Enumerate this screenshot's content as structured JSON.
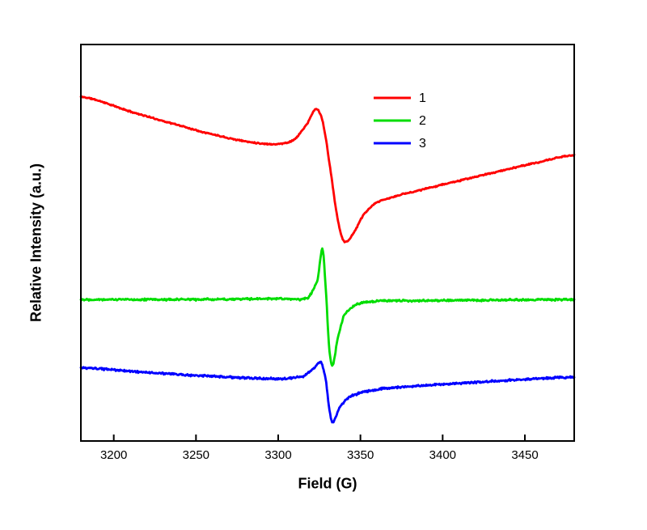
{
  "figure": {
    "background": "#ffffff"
  },
  "chart_data": {
    "type": "line",
    "title": "",
    "xlabel": "Field (G)",
    "ylabel": "Relative Intensity (a.u.)",
    "xlim": [
      3180,
      3480
    ],
    "ylim": [
      0,
      100
    ],
    "x_ticks": [
      3200,
      3250,
      3300,
      3350,
      3400,
      3450
    ],
    "y_ticks": [],
    "grid": false,
    "frame_color": "#000000",
    "legend": {
      "position": "upper-center",
      "entries": [
        {
          "label": "1",
          "color": "#ff0000"
        },
        {
          "label": "2",
          "color": "#00dd00"
        },
        {
          "label": "3",
          "color": "#0000ff"
        }
      ]
    },
    "series": [
      {
        "name": "1",
        "color": "#ff0000",
        "noise": 0.2,
        "points": [
          [
            3182,
            86.7
          ],
          [
            3210,
            83.1
          ],
          [
            3240,
            79.6
          ],
          [
            3265,
            76.9
          ],
          [
            3285,
            75.3
          ],
          [
            3300,
            74.9
          ],
          [
            3310,
            76.1
          ],
          [
            3318,
            80.2
          ],
          [
            3323,
            83.7
          ],
          [
            3327,
            80.6
          ],
          [
            3331,
            70.4
          ],
          [
            3336,
            56.5
          ],
          [
            3340,
            50.4
          ],
          [
            3345,
            52.0
          ],
          [
            3352,
            57.1
          ],
          [
            3360,
            60.2
          ],
          [
            3375,
            62.2
          ],
          [
            3400,
            64.7
          ],
          [
            3430,
            67.6
          ],
          [
            3460,
            70.4
          ],
          [
            3478,
            72.0
          ]
        ]
      },
      {
        "name": "2",
        "color": "#00dd00",
        "noise": 0.3,
        "points": [
          [
            3182,
            35.7
          ],
          [
            3250,
            35.7
          ],
          [
            3300,
            35.9
          ],
          [
            3318,
            36.1
          ],
          [
            3324,
            40.8
          ],
          [
            3327,
            48.4
          ],
          [
            3329,
            37.8
          ],
          [
            3331,
            23.5
          ],
          [
            3333,
            19.0
          ],
          [
            3336,
            25.5
          ],
          [
            3340,
            31.6
          ],
          [
            3348,
            34.5
          ],
          [
            3360,
            35.3
          ],
          [
            3420,
            35.5
          ],
          [
            3478,
            35.7
          ]
        ]
      },
      {
        "name": "3",
        "color": "#0000ff",
        "noise": 0.3,
        "points": [
          [
            3182,
            18.4
          ],
          [
            3220,
            17.3
          ],
          [
            3260,
            16.3
          ],
          [
            3300,
            15.7
          ],
          [
            3315,
            16.3
          ],
          [
            3322,
            18.4
          ],
          [
            3326,
            19.8
          ],
          [
            3329,
            15.3
          ],
          [
            3331,
            8.2
          ],
          [
            3333,
            4.7
          ],
          [
            3337,
            8.2
          ],
          [
            3342,
            10.8
          ],
          [
            3350,
            12.2
          ],
          [
            3365,
            13.3
          ],
          [
            3400,
            14.3
          ],
          [
            3440,
            15.3
          ],
          [
            3478,
            16.1
          ]
        ]
      }
    ]
  }
}
